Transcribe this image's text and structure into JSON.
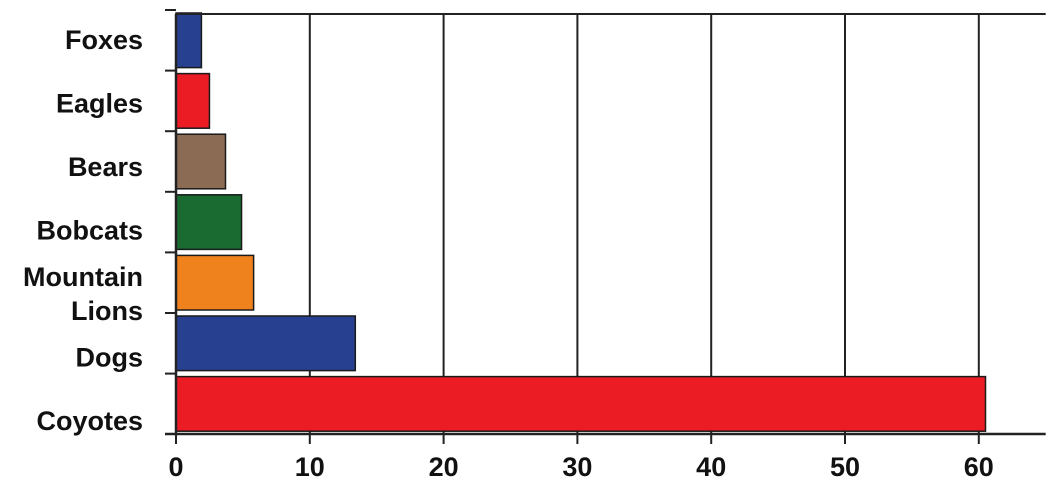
{
  "chart_data": {
    "type": "bar",
    "orientation": "horizontal",
    "categories": [
      "Foxes",
      "Eagles",
      "Bears",
      "Bobcats",
      "Mountain Lions",
      "Dogs",
      "Coyotes"
    ],
    "category_label_lines": [
      [
        "Foxes"
      ],
      [
        "Eagles"
      ],
      [
        "Bears"
      ],
      [
        "Bobcats"
      ],
      [
        "Mountain",
        "Lions"
      ],
      [
        "Dogs"
      ],
      [
        "Coyotes"
      ]
    ],
    "values": [
      1.9,
      2.5,
      3.7,
      4.9,
      5.8,
      13.4,
      60.5
    ],
    "colors": [
      "#27408F",
      "#EC1C24",
      "#8C6B55",
      "#196B32",
      "#F0821E",
      "#27408F",
      "#EC1C24"
    ],
    "xlim": [
      0,
      65
    ],
    "xticks": [
      0,
      10,
      20,
      30,
      40,
      50,
      60
    ],
    "xtick_labels": [
      "0",
      "10",
      "20",
      "30",
      "40",
      "50",
      "60"
    ],
    "grid": "vertical",
    "title": "",
    "xlabel": "",
    "ylabel": ""
  }
}
